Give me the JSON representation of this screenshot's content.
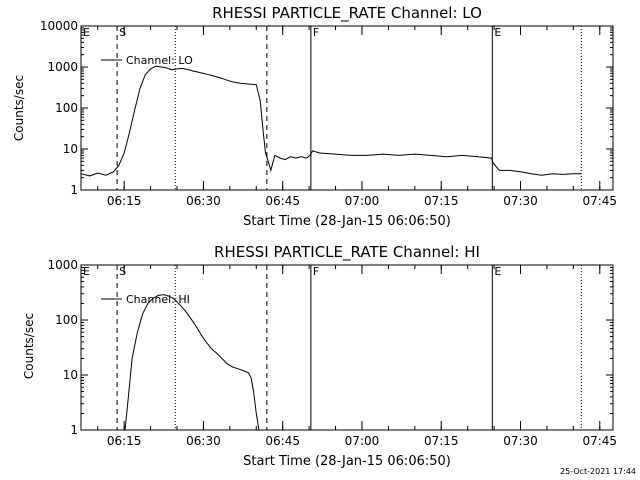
{
  "footer": {
    "timestamp": "25-Oct-2021 17:44"
  },
  "colors": {
    "background": "#ffffff",
    "ink": "#000000"
  },
  "chart_data": [
    {
      "type": "line",
      "title": "RHESSI PARTICLE_RATE Channel: LO",
      "xlabel": "Start Time (28-Jan-15 06:06:50)",
      "ylabel": "Counts/sec",
      "yscale": "log",
      "ylim": [
        1,
        10000
      ],
      "xlim": [
        "06:06:50",
        "07:47:30"
      ],
      "xticks": [
        "06:15",
        "06:30",
        "06:45",
        "07:00",
        "07:15",
        "07:30",
        "07:45"
      ],
      "yticks": [
        "1",
        "10",
        "100",
        "1000",
        "10000"
      ],
      "legend": {
        "entries": [
          "Channel: LO"
        ],
        "position": "top-left"
      },
      "markers": [
        {
          "label": "E",
          "time": "06:06:50",
          "style": "solid"
        },
        {
          "label": "S",
          "time": "06:13:40",
          "style": "dashed"
        },
        {
          "label": "",
          "time": "06:24:40",
          "style": "dotted"
        },
        {
          "label": "",
          "time": "06:42:00",
          "style": "dashed"
        },
        {
          "label": "F",
          "time": "06:50:20",
          "style": "solid"
        },
        {
          "label": "E",
          "time": "07:24:40",
          "style": "solid"
        },
        {
          "label": "",
          "time": "07:41:30",
          "style": "dotted"
        }
      ],
      "series": [
        {
          "name": "Channel: LO",
          "x": [
            "06:06:50",
            "06:08:30",
            "06:10:00",
            "06:11:30",
            "06:13:00",
            "06:14:00",
            "06:15:00",
            "06:16:00",
            "06:17:00",
            "06:18:00",
            "06:19:00",
            "06:20:00",
            "06:21:00",
            "06:22:00",
            "06:23:00",
            "06:24:00",
            "06:25:00",
            "06:26:00",
            "06:27:00",
            "06:28:00",
            "06:29:00",
            "06:30:00",
            "06:31:00",
            "06:32:00",
            "06:33:00",
            "06:34:00",
            "06:35:00",
            "06:36:00",
            "06:37:00",
            "06:38:00",
            "06:39:00",
            "06:40:00",
            "06:40:45",
            "06:41:20",
            "06:41:45",
            "06:42:15",
            "06:42:45",
            "06:43:30",
            "06:44:30",
            "06:45:30",
            "06:46:30",
            "06:47:30",
            "06:48:30",
            "06:49:30",
            "06:50:10",
            "06:50:40",
            "06:52:00",
            "06:55:00",
            "06:58:00",
            "07:01:00",
            "07:04:00",
            "07:07:00",
            "07:10:00",
            "07:13:00",
            "07:16:00",
            "07:19:00",
            "07:22:00",
            "07:24:30",
            "07:24:50",
            "07:26:00",
            "07:28:00",
            "07:30:00",
            "07:32:00",
            "07:34:00",
            "07:36:00",
            "07:38:00",
            "07:40:00",
            "07:41:30"
          ],
          "y": [
            2.5,
            2.2,
            2.6,
            2.3,
            2.8,
            4,
            8,
            25,
            90,
            300,
            650,
            900,
            1050,
            1000,
            950,
            850,
            900,
            920,
            870,
            800,
            750,
            700,
            650,
            600,
            550,
            500,
            450,
            420,
            400,
            390,
            380,
            370,
            150,
            25,
            8,
            5,
            3,
            7,
            6,
            5.5,
            6.5,
            6,
            6.5,
            6,
            7,
            9,
            8,
            7.5,
            7,
            7,
            7.5,
            7,
            7.5,
            7,
            6.5,
            7,
            6.5,
            6,
            4.5,
            3,
            3,
            2.8,
            2.5,
            2.3,
            2.5,
            2.4,
            2.5,
            2.5
          ]
        }
      ]
    },
    {
      "type": "line",
      "title": "RHESSI PARTICLE_RATE Channel: HI",
      "xlabel": "Start Time (28-Jan-15 06:06:50)",
      "ylabel": "Counts/sec",
      "yscale": "log",
      "ylim": [
        1,
        1000
      ],
      "xlim": [
        "06:06:50",
        "07:47:30"
      ],
      "xticks": [
        "06:15",
        "06:30",
        "06:45",
        "07:00",
        "07:15",
        "07:30",
        "07:45"
      ],
      "yticks": [
        "1",
        "10",
        "100",
        "1000"
      ],
      "legend": {
        "entries": [
          "Channel: HI"
        ],
        "position": "top-left"
      },
      "markers": [
        {
          "label": "E",
          "time": "06:06:50",
          "style": "solid"
        },
        {
          "label": "S",
          "time": "06:13:40",
          "style": "dashed"
        },
        {
          "label": "",
          "time": "06:24:40",
          "style": "dotted"
        },
        {
          "label": "",
          "time": "06:42:00",
          "style": "dashed"
        },
        {
          "label": "F",
          "time": "06:50:20",
          "style": "solid"
        },
        {
          "label": "E",
          "time": "07:24:40",
          "style": "solid"
        },
        {
          "label": "",
          "time": "07:41:30",
          "style": "dotted"
        }
      ],
      "series": [
        {
          "name": "Channel: HI",
          "x": [
            "06:15:10",
            "06:15:40",
            "06:16:30",
            "06:17:30",
            "06:18:30",
            "06:19:30",
            "06:20:30",
            "06:21:30",
            "06:22:30",
            "06:23:30",
            "06:24:30",
            "06:25:30",
            "06:26:30",
            "06:27:30",
            "06:28:30",
            "06:29:30",
            "06:30:30",
            "06:31:30",
            "06:32:30",
            "06:33:30",
            "06:34:30",
            "06:35:30",
            "06:36:30",
            "06:37:30",
            "06:38:30",
            "06:39:00",
            "06:39:30",
            "06:40:00",
            "06:40:30"
          ],
          "y": [
            1,
            3,
            20,
            60,
            130,
            200,
            250,
            280,
            290,
            270,
            240,
            190,
            150,
            110,
            80,
            55,
            40,
            30,
            25,
            20,
            16,
            14,
            13,
            12,
            11,
            9,
            5,
            2,
            1
          ]
        }
      ]
    }
  ]
}
